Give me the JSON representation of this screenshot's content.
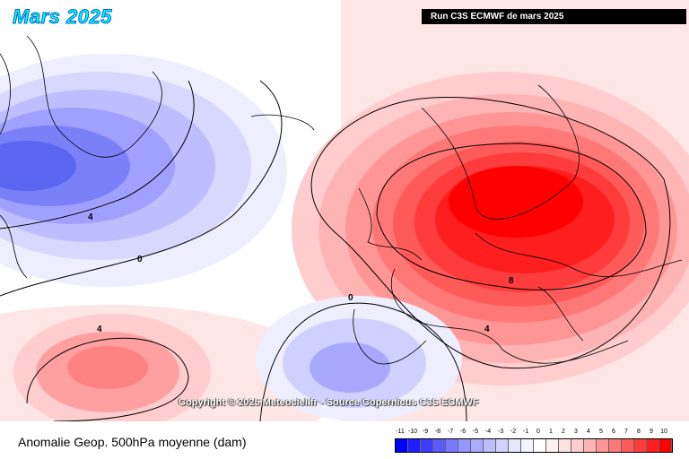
{
  "title": "Mars 2025",
  "run_label": "Run C3S ECMWF de mars 2025",
  "copyright": "Copyright © 2025 Meteociel.fr - Source Copernicus C3S ECMWF",
  "subtitle": "Anomalie Geop. 500hPa moyenne (dam)",
  "contour_labels": [
    "4",
    "0",
    "0",
    "4",
    "8",
    "4"
  ],
  "legend": {
    "labels": [
      "-11",
      "-10",
      "-9",
      "-8",
      "-7",
      "-6",
      "-5",
      "-4",
      "-3",
      "-2",
      "-1",
      "0",
      "1",
      "2",
      "3",
      "4",
      "5",
      "6",
      "7",
      "8",
      "9",
      "10"
    ],
    "colors": [
      "#0000ff",
      "#1e1eff",
      "#3c3cff",
      "#5a5aff",
      "#7878ff",
      "#9696ff",
      "#aaaaff",
      "#bebeff",
      "#d2d2ff",
      "#e6e6ff",
      "#f4f4ff",
      "#ffffff",
      "#fff0f0",
      "#ffe1e1",
      "#ffcdcd",
      "#ffb4b4",
      "#ff9696",
      "#ff7878",
      "#ff5a5a",
      "#ff3c3c",
      "#ff1e1e",
      "#ff0000"
    ]
  },
  "colors": {
    "title_fill": "#00ffff",
    "positive_core": "#ff0000",
    "negative_core": "#4a5cf0"
  },
  "icons": [
    "map-icon"
  ]
}
